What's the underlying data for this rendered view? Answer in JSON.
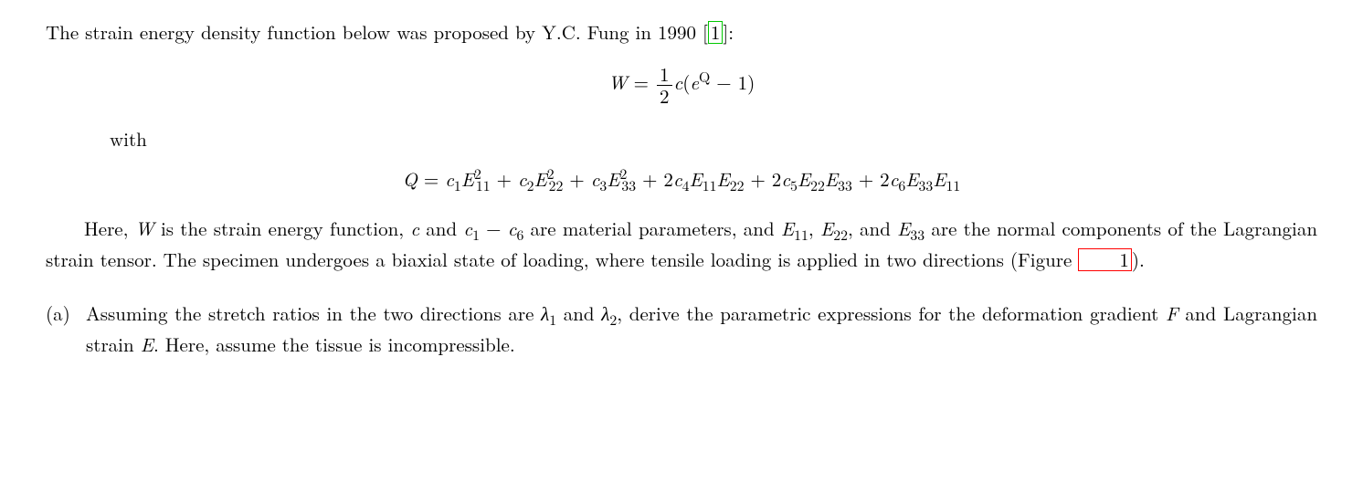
{
  "intro_before_ref": "The strain energy density function below was proposed by Y.C. Fung in 1990 [",
  "ref1": "1",
  "intro_after_ref": "]:",
  "eq_W": {
    "lhs": "W",
    "equals": " = ",
    "frac_num": "1",
    "frac_den": "2",
    "c": "c",
    "lparen": "(",
    "e": "e",
    "exp": "Q",
    "minus1": " − 1",
    "rparen": ")"
  },
  "with_text": "with",
  "eq_Q": {
    "lhs": "Q",
    "equals": " = ",
    "c1": "c",
    "c1_sub": "1",
    "E11": "E",
    "E11_sup": "2",
    "E11_sub": "11",
    "plus1": " + ",
    "c2": "c",
    "c2_sub": "2",
    "E22": "E",
    "E22_sup": "2",
    "E22_sub": "22",
    "plus2": " + ",
    "c3": "c",
    "c3_sub": "3",
    "E33": "E",
    "E33_sup": "2",
    "E33_sub": "33",
    "plus3": " + 2",
    "c4": "c",
    "c4_sub": "4",
    "E11a": "E",
    "E11a_sub": "11",
    "E22a": "E",
    "E22a_sub": "22",
    "plus4": " + 2",
    "c5": "c",
    "c5_sub": "5",
    "E22b": "E",
    "E22b_sub": "22",
    "E33b": "E",
    "E33b_sub": "33",
    "plus5": " + 2",
    "c6": "c",
    "c6_sub": "6",
    "E33c": "E",
    "E33c_sub": "33",
    "E11c": "E",
    "E11c_sub": "11"
  },
  "para2": {
    "p1": "Here, ",
    "W": "W",
    "p2": " is the strain energy function, ",
    "c": "c",
    "p3": " and ",
    "c1": "c",
    "c1_sub": "1",
    "dash": " − ",
    "c6": "c",
    "c6_sub": "6",
    "p4": " are material parameters, and ",
    "E11": "E",
    "E11_sub": "11",
    "comma1": ", ",
    "E22": "E",
    "E22_sub": "22",
    "comma2": ", and ",
    "E33": "E",
    "E33_sub": "33",
    "p5": " are the normal components of the Lagrangian strain tensor. The specimen undergoes a biaxial state of loading, where tensile loading is applied in two directions (Figure ",
    "figref": "1",
    "p6": ")."
  },
  "item_a": {
    "label": "(a)",
    "p1": "Assuming the stretch ratios in the two directions are ",
    "lambda1": "λ",
    "lambda1_sub": "1",
    "and": " and ",
    "lambda2": "λ",
    "lambda2_sub": "2",
    "p2": ", derive the parametric expressions for the deformation gradient ",
    "F": "F",
    "p3": " and Lagrangian strain ",
    "E": "E",
    "p4": ". Here, assume the tissue is incompressible."
  }
}
